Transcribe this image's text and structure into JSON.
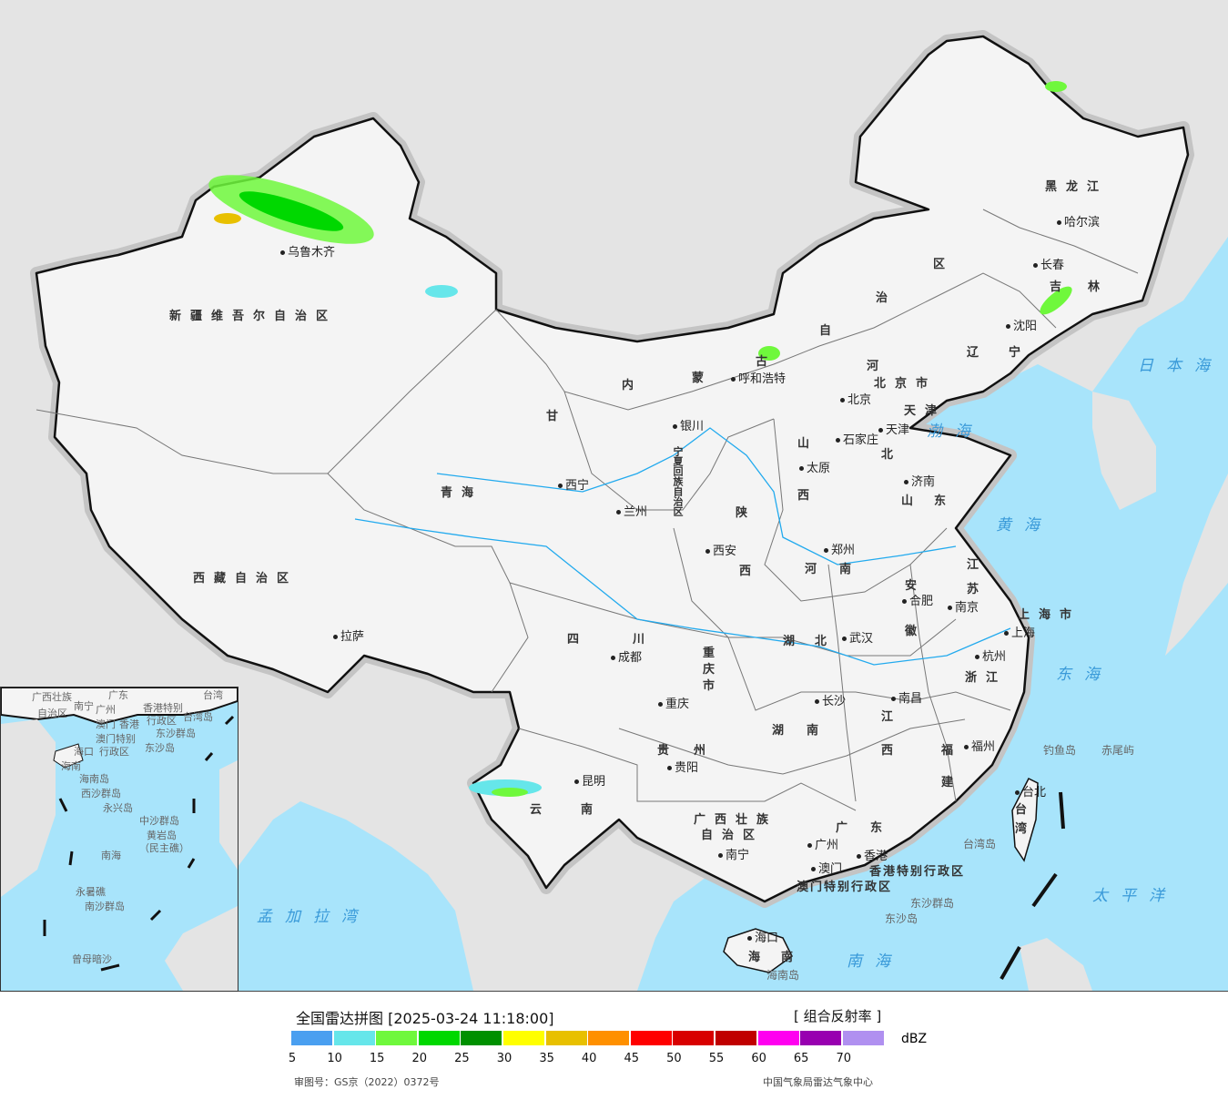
{
  "map": {
    "colors": {
      "sea": "#a8e4fb",
      "china_land": "#f4f4f4",
      "foreign_land": "#e4e4e4",
      "border": "#111111",
      "halo": "#bdbdbd",
      "river": "#22aaee"
    },
    "provinces": [
      "新疆维吾尔自治区",
      "西藏自治区",
      "青海",
      "甘",
      "内",
      "蒙",
      "古",
      "自",
      "治",
      "区",
      "黑龙江",
      "吉",
      "林",
      "辽",
      "宁",
      "河",
      "北",
      "山",
      "西",
      "山",
      "东",
      "陕",
      "西",
      "河",
      "南",
      "江",
      "苏",
      "安",
      "徽",
      "四",
      "川",
      "湖",
      "北",
      "湖",
      "南",
      "江",
      "西",
      "浙江",
      "福",
      "建",
      "贵",
      "州",
      "云",
      "南",
      "广西壮族",
      "自治区",
      "广",
      "东",
      "海",
      "南",
      "台",
      "湾",
      "宁夏回族自治区",
      "重",
      "庆",
      "市",
      "上海市",
      "北京市",
      "天津",
      "香港特别行政区",
      "澳门特别行政区"
    ],
    "cities": [
      "乌鲁木齐",
      "拉萨",
      "西宁",
      "兰州",
      "银川",
      "呼和浩特",
      "北京",
      "石家庄",
      "太原",
      "济南",
      "郑州",
      "西安",
      "成都",
      "重庆",
      "武汉",
      "合肥",
      "南京",
      "上海",
      "杭州",
      "长沙",
      "南昌",
      "福州",
      "贵阳",
      "昆明",
      "南宁",
      "广州",
      "香港",
      "澳门",
      "海口",
      "台北",
      "哈尔滨",
      "长春",
      "沈阳",
      "天津"
    ],
    "seas": [
      "日本海",
      "渤海",
      "黄海",
      "东海",
      "太平洋",
      "南海",
      "孟加拉湾"
    ],
    "islands": [
      "钓鱼岛",
      "赤尾屿",
      "台湾岛",
      "东沙群岛",
      "东沙岛",
      "海南岛"
    ],
    "inset_labels": [
      "广西壮族",
      "自治区",
      "南宁",
      "广东",
      "广州",
      "澳门",
      "香港",
      "香港特别",
      "行政区",
      "澳门特别",
      "行政区",
      "台湾",
      "台湾岛",
      "东沙群岛",
      "东沙岛",
      "海口",
      "海南",
      "海南岛",
      "西沙群岛",
      "永兴岛",
      "中沙群岛",
      "黄岩岛",
      "（民主礁）",
      "南海",
      "永暑礁",
      "南沙群岛",
      "曾母暗沙"
    ]
  },
  "legend": {
    "title": "全国雷达拼图 [2025-03-24 11:18:00]",
    "product": "[ 组合反射率 ]",
    "unit": "dBZ",
    "colors": [
      "#4a9ff0",
      "#66e6ea",
      "#6ff83c",
      "#00d800",
      "#009000",
      "#ffff00",
      "#e8c000",
      "#ff9000",
      "#ff0000",
      "#d80000",
      "#c00000",
      "#ff00f0",
      "#9800b0",
      "#b090f0"
    ],
    "ticks": [
      "5",
      "10",
      "15",
      "20",
      "25",
      "30",
      "35",
      "40",
      "45",
      "50",
      "55",
      "60",
      "65",
      "70"
    ],
    "approval": "审图号：GS京（2022）0372号",
    "credit": "中国气象局雷达气象中心"
  }
}
